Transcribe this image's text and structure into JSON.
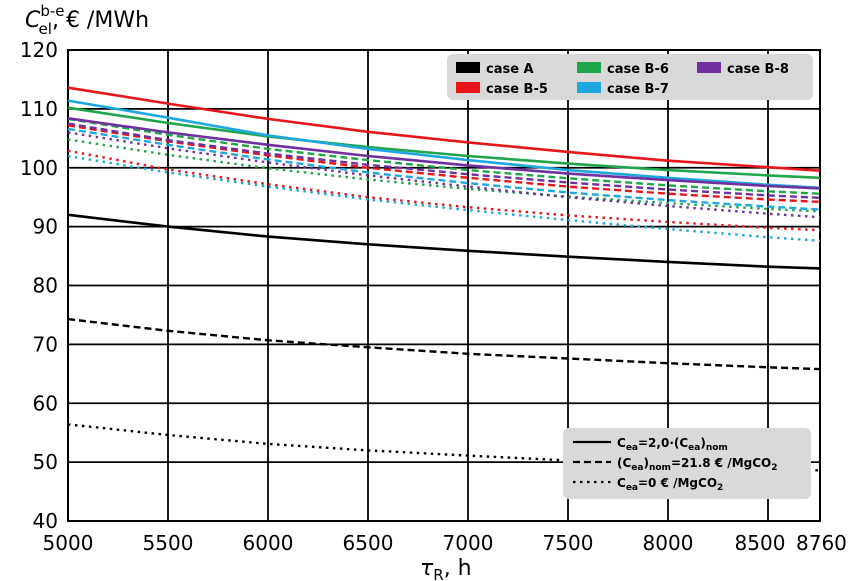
{
  "chart_data": {
    "type": "line",
    "ylabel": {
      "symbol": "C",
      "sup": "b-e",
      "sub": "el",
      "unit": ", € /MWh"
    },
    "xlabel": {
      "symbol": "τ",
      "sub": "R",
      "unit": ", h"
    },
    "xlim": [
      5000,
      8760
    ],
    "ylim": [
      40,
      120
    ],
    "x_ticks": [
      "5000",
      "5500",
      "6000",
      "6500",
      "7000",
      "7500",
      "8000",
      "8500",
      "8760"
    ],
    "x_tick_values": [
      5000,
      5500,
      6000,
      6500,
      7000,
      7500,
      8000,
      8500,
      8760
    ],
    "y_ticks": [
      40,
      50,
      60,
      70,
      80,
      90,
      100,
      110,
      120
    ],
    "grid": true,
    "case_legend": {
      "placement": "top-right",
      "entries": [
        {
          "label": "case A",
          "color": "#000000"
        },
        {
          "label": "case B-5",
          "color": "#e8161b"
        },
        {
          "label": "case B-6",
          "color": "#1fa64a"
        },
        {
          "label": "case B-7",
          "color": "#1fa8e0"
        },
        {
          "label": "case B-8",
          "color": "#7030a0"
        }
      ]
    },
    "style_legend": {
      "placement": "bottom-right",
      "entries": [
        {
          "style": "solid",
          "parts": [
            [
              "C",
              "n"
            ],
            [
              "ea",
              "sub"
            ],
            [
              "=2,0·(",
              "n"
            ],
            [
              "C",
              "n"
            ],
            [
              "ea",
              "sub"
            ],
            [
              ")",
              "n"
            ],
            [
              "nom",
              "sub"
            ]
          ]
        },
        {
          "style": "dashed",
          "parts": [
            [
              "(",
              "n"
            ],
            [
              "C",
              "n"
            ],
            [
              "ea",
              "sub"
            ],
            [
              ")",
              "n"
            ],
            [
              "nom",
              "sub"
            ],
            [
              "=21.8 € /MgCO",
              "n"
            ],
            [
              "2",
              "sub"
            ]
          ]
        },
        {
          "style": "dotted",
          "parts": [
            [
              "C",
              "n"
            ],
            [
              "ea",
              "sub"
            ],
            [
              "=0 € /MgCO",
              "n"
            ],
            [
              "2",
              "sub"
            ]
          ]
        }
      ]
    },
    "x": [
      5000,
      5500,
      6000,
      6500,
      7000,
      7500,
      8000,
      8500,
      8760
    ],
    "series": [
      {
        "case": "case A",
        "style": "solid",
        "color": "#000000",
        "values": [
          92.0,
          90.0,
          88.3,
          87.0,
          85.9,
          84.9,
          84.0,
          83.2,
          82.9
        ]
      },
      {
        "case": "case A",
        "style": "dashed",
        "color": "#000000",
        "values": [
          74.3,
          72.3,
          70.7,
          69.5,
          68.4,
          67.6,
          66.8,
          66.1,
          65.8
        ]
      },
      {
        "case": "case A",
        "style": "dotted",
        "color": "#000000",
        "values": [
          56.4,
          54.6,
          53.1,
          52.0,
          51.1,
          50.3,
          49.6,
          48.9,
          48.6
        ]
      },
      {
        "case": "case B-5",
        "style": "solid",
        "color": "#e8161b",
        "values": [
          113.6,
          110.9,
          108.3,
          106.1,
          104.3,
          102.7,
          101.2,
          100.1,
          99.5
        ]
      },
      {
        "case": "case B-5",
        "style": "dashed",
        "color": "#e8161b",
        "values": [
          107.2,
          104.5,
          102.1,
          100.0,
          98.3,
          96.8,
          95.6,
          94.6,
          94.2
        ]
      },
      {
        "case": "case B-5",
        "style": "dotted",
        "color": "#e8161b",
        "values": [
          102.9,
          99.7,
          97.2,
          95.0,
          93.3,
          91.9,
          90.8,
          89.8,
          89.4
        ]
      },
      {
        "case": "case B-6",
        "style": "solid",
        "color": "#1fa64a",
        "values": [
          110.2,
          107.6,
          105.3,
          103.5,
          102.0,
          100.7,
          99.6,
          98.7,
          98.3
        ]
      },
      {
        "case": "case B-6",
        "style": "dashed",
        "color": "#1fa64a",
        "values": [
          108.3,
          105.6,
          103.2,
          101.3,
          99.6,
          98.2,
          97.0,
          96.0,
          95.6
        ]
      },
      {
        "case": "case B-6",
        "style": "dotted",
        "color": "#1fa64a",
        "values": [
          104.8,
          102.2,
          99.9,
          98.0,
          96.4,
          95.1,
          94.0,
          93.0,
          92.6
        ]
      },
      {
        "case": "case B-7",
        "style": "solid",
        "color": "#1fa8e0",
        "values": [
          111.4,
          108.5,
          105.5,
          103.2,
          101.3,
          99.6,
          98.3,
          97.1,
          96.6
        ]
      },
      {
        "case": "case B-7",
        "style": "dashed",
        "color": "#1fa8e0",
        "values": [
          106.6,
          103.9,
          101.4,
          99.2,
          97.4,
          95.8,
          94.5,
          93.4,
          92.9
        ]
      },
      {
        "case": "case B-7",
        "style": "dotted",
        "color": "#1fa8e0",
        "values": [
          102.0,
          99.2,
          96.8,
          94.6,
          92.8,
          91.1,
          89.6,
          88.2,
          87.6
        ]
      },
      {
        "case": "case B-8",
        "style": "solid",
        "color": "#7030a0",
        "values": [
          108.4,
          106.0,
          103.9,
          102.0,
          100.4,
          99.0,
          97.9,
          96.9,
          96.5
        ]
      },
      {
        "case": "case B-8",
        "style": "dashed",
        "color": "#7030a0",
        "values": [
          107.5,
          104.7,
          102.4,
          100.5,
          98.9,
          97.5,
          96.3,
          95.3,
          94.9
        ]
      },
      {
        "case": "case B-8",
        "style": "dotted",
        "color": "#7030a0",
        "values": [
          106.0,
          103.3,
          100.9,
          98.7,
          96.8,
          95.0,
          93.5,
          92.2,
          91.6
        ]
      }
    ]
  }
}
